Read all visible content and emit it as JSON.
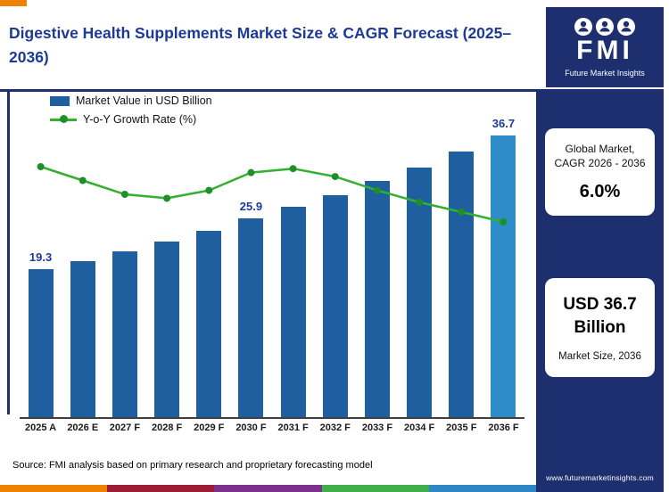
{
  "header": {
    "title": "Digestive Health Supplements Market Size & CAGR Forecast (2025–2036)"
  },
  "logo": {
    "abbr": "FMI",
    "name": "Future Market Insights"
  },
  "legend": {
    "bar_label": "Market Value in USD Billion",
    "line_label": "Y-o-Y Growth Rate (%)"
  },
  "sidebar": {
    "card1": {
      "line1": "Global Market,",
      "line2": "CAGR 2026 - 2036",
      "value": "6.0%"
    },
    "card2": {
      "value_line1": "USD 36.7",
      "value_line2": "Billion",
      "caption": "Market Size, 2036"
    },
    "website": "www.futuremarketinsights.com"
  },
  "source": "Source: FMI analysis based on primary research and proprietary forecasting model",
  "colors": {
    "title_blue": "#1c3a96",
    "navy": "#1d2f6f",
    "bar": "#1f5f9f",
    "bar_highlight": "#2e8cc8",
    "line_green": "#33b02e",
    "dot_green": "#1f8f2a",
    "strip": [
      "#ef8200",
      "#9d1d36",
      "#7d2f8e",
      "#3fae49",
      "#2e86c5"
    ]
  },
  "chart_data": {
    "type": "bar+line",
    "title": "Digestive Health Supplements Market Size & CAGR Forecast (2025–2036)",
    "categories": [
      "2025 A",
      "2026 E",
      "2027 F",
      "2028 F",
      "2029 F",
      "2030 F",
      "2031 F",
      "2032 F",
      "2033 F",
      "2034 F",
      "2035 F",
      "2036 F"
    ],
    "series": [
      {
        "name": "Market Value in USD Billion",
        "type": "bar",
        "values": [
          19.3,
          20.4,
          21.6,
          22.9,
          24.3,
          25.9,
          27.4,
          29.0,
          30.8,
          32.6,
          34.6,
          36.7
        ],
        "data_labels": [
          "19.3",
          "",
          "",
          "",
          "",
          "25.9",
          "",
          "",
          "",
          "",
          "",
          "36.7"
        ],
        "highlight_last": true
      },
      {
        "name": "Y-o-Y Growth Rate (%)",
        "type": "line",
        "axis": "secondary",
        "values": [
          6.6,
          6.25,
          5.9,
          5.8,
          6.0,
          6.45,
          6.55,
          6.35,
          6.0,
          5.7,
          5.45,
          5.2
        ]
      }
    ],
    "ylabel": "",
    "grid": false,
    "legend_position": "top-left"
  }
}
